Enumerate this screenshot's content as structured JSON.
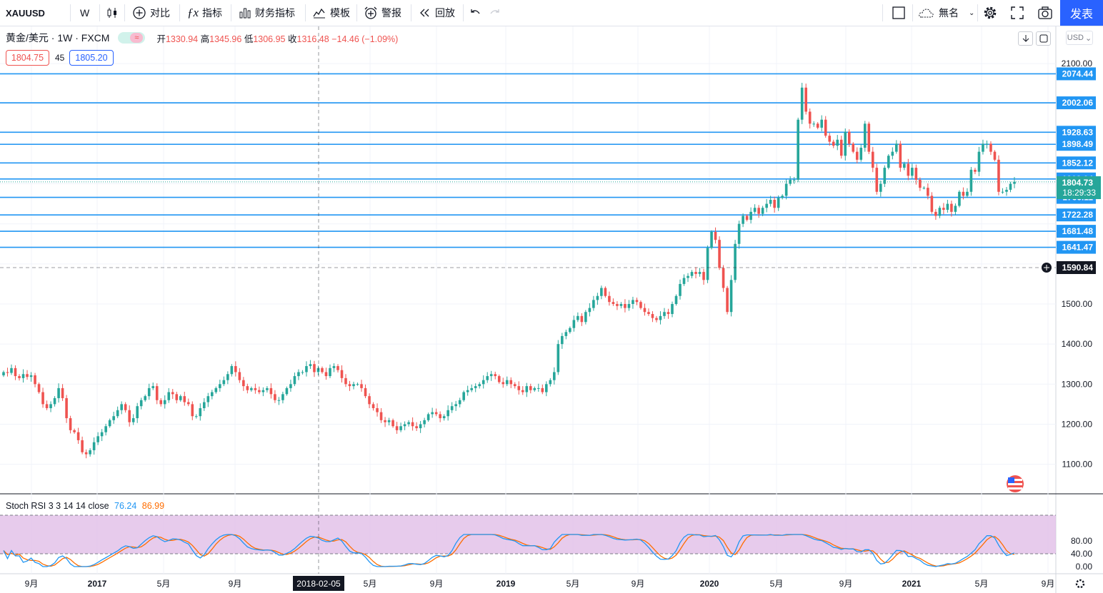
{
  "toolbar": {
    "symbol": "XAUUSD",
    "interval": "W",
    "compare": "对比",
    "indicators": "指标",
    "financials": "财务指标",
    "templates": "模板",
    "alert": "警报",
    "replay": "回放",
    "layout_name": "無名",
    "publish": "发表"
  },
  "legend": {
    "title": "黄金/美元 · 1W · FXCM",
    "open_label": "开",
    "open": "1330.94",
    "high_label": "高",
    "high": "1345.96",
    "low_label": "低",
    "low": "1306.95",
    "close_label": "收",
    "close": "1316.48",
    "change": "−14.46 (−1.09%)",
    "bid": "1804.75",
    "spread": "45",
    "ask": "1805.20"
  },
  "currency": "USD",
  "rsi": {
    "name": "Stoch RSI 3 3 14 14 close",
    "k": "76.24",
    "d": "86.99"
  },
  "price_axis": [
    "2100.00",
    "1500.00",
    "1400.00",
    "1300.00",
    "1200.00",
    "1100.00"
  ],
  "rsi_axis": [
    "80.00",
    "40.00",
    "0.00"
  ],
  "time_axis": [
    {
      "l": "9月",
      "x": 44
    },
    {
      "l": "2017",
      "x": 136
    },
    {
      "l": "5月",
      "x": 229
    },
    {
      "l": "9月",
      "x": 329
    },
    {
      "l": "5月",
      "x": 518
    },
    {
      "l": "9月",
      "x": 611
    },
    {
      "l": "2019",
      "x": 708
    },
    {
      "l": "5月",
      "x": 802
    },
    {
      "l": "9月",
      "x": 893
    },
    {
      "l": "2020",
      "x": 993
    },
    {
      "l": "5月",
      "x": 1087
    },
    {
      "l": "9月",
      "x": 1184
    },
    {
      "l": "2021",
      "x": 1276
    },
    {
      "l": "5月",
      "x": 1374
    },
    {
      "l": "9月",
      "x": 1467
    }
  ],
  "cursor_date": "2018-02-05",
  "crosshair_price": "1590.84",
  "levels": [
    "2074.44",
    "2002.06",
    "1928.63",
    "1898.49",
    "1852.12",
    "1812.04",
    "1766.11",
    "1722.28",
    "1681.48",
    "1641.47"
  ],
  "last_price": "1804.73",
  "countdown": "18:29:33",
  "colors": {
    "up": "#26a69a",
    "down": "#ef5350",
    "level": "#2196f3",
    "k": "#2196f3",
    "d": "#ff6d00",
    "band": "#e1bee7"
  },
  "chart_data": {
    "type": "candlestick",
    "ylim": [
      1030,
      2110
    ],
    "closes": [
      1330,
      1328,
      1340,
      1320,
      1315,
      1325,
      1318,
      1322,
      1300,
      1280,
      1250,
      1240,
      1250,
      1265,
      1290,
      1265,
      1215,
      1185,
      1180,
      1160,
      1130,
      1125,
      1135,
      1155,
      1170,
      1180,
      1195,
      1210,
      1220,
      1235,
      1250,
      1235,
      1205,
      1215,
      1245,
      1260,
      1270,
      1290,
      1295,
      1260,
      1250,
      1260,
      1280,
      1275,
      1260,
      1270,
      1255,
      1250,
      1220,
      1220,
      1240,
      1255,
      1270,
      1280,
      1290,
      1300,
      1310,
      1325,
      1345,
      1330,
      1310,
      1295,
      1285,
      1290,
      1285,
      1280,
      1285,
      1290,
      1275,
      1260,
      1260,
      1275,
      1290,
      1300,
      1320,
      1330,
      1330,
      1345,
      1350,
      1330,
      1340,
      1330,
      1320,
      1340,
      1345,
      1335,
      1315,
      1300,
      1295,
      1300,
      1300,
      1290,
      1270,
      1250,
      1240,
      1230,
      1210,
      1205,
      1210,
      1195,
      1185,
      1195,
      1200,
      1205,
      1195,
      1190,
      1200,
      1210,
      1225,
      1230,
      1225,
      1215,
      1220,
      1235,
      1245,
      1250,
      1260,
      1280,
      1285,
      1290,
      1295,
      1300,
      1310,
      1320,
      1325,
      1320,
      1305,
      1300,
      1310,
      1300,
      1295,
      1285,
      1280,
      1295,
      1285,
      1290,
      1290,
      1280,
      1300,
      1310,
      1330,
      1400,
      1420,
      1430,
      1440,
      1460,
      1470,
      1455,
      1480,
      1490,
      1510,
      1520,
      1540,
      1520,
      1505,
      1500,
      1495,
      1500,
      1490,
      1500,
      1510,
      1505,
      1490,
      1480,
      1475,
      1465,
      1460,
      1470,
      1480,
      1475,
      1500,
      1520,
      1550,
      1565,
      1570,
      1580,
      1575,
      1580,
      1560,
      1640,
      1680,
      1660,
      1590,
      1540,
      1480,
      1560,
      1650,
      1700,
      1720,
      1710,
      1730,
      1740,
      1725,
      1740,
      1750,
      1760,
      1740,
      1765,
      1770,
      1800,
      1810,
      1810,
      1960,
      2040,
      1980,
      1950,
      1950,
      1940,
      1960,
      1920,
      1905,
      1895,
      1910,
      1870,
      1930,
      1900,
      1880,
      1860,
      1890,
      1950,
      1880,
      1840,
      1780,
      1800,
      1840,
      1870,
      1880,
      1900,
      1840,
      1850,
      1820,
      1840,
      1810,
      1790,
      1790,
      1770,
      1730,
      1720,
      1740,
      1735,
      1750,
      1730,
      1745,
      1780,
      1770,
      1780,
      1835,
      1830,
      1880,
      1900,
      1900,
      1880,
      1860,
      1780,
      1780,
      1785,
      1800,
      1805
    ]
  }
}
